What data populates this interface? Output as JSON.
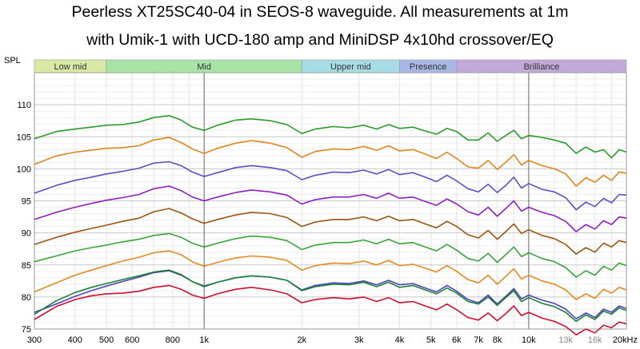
{
  "title_lines": [
    "Peerless XT25SC40-04 in SEOS-8 waveguide. All measurements at 1m",
    "with Umik-1 with UCD-180 amp and MiniDSP 4x10hd crossover/EQ"
  ],
  "chart_data": {
    "type": "line",
    "ylabel": "SPL",
    "xscale": "log",
    "xlim": [
      300,
      20000
    ],
    "ylim": [
      75,
      115
    ],
    "grid": true,
    "x_ticks": [
      {
        "value": 300,
        "label": "300",
        "minor": false
      },
      {
        "value": 400,
        "label": "400",
        "minor": false
      },
      {
        "value": 500,
        "label": "500",
        "minor": false
      },
      {
        "value": 600,
        "label": "600",
        "minor": false
      },
      {
        "value": 800,
        "label": "800",
        "minor": false
      },
      {
        "value": 1000,
        "label": "1k",
        "minor": false
      },
      {
        "value": 2000,
        "label": "2k",
        "minor": false
      },
      {
        "value": 3000,
        "label": "3k",
        "minor": false
      },
      {
        "value": 4000,
        "label": "4k",
        "minor": false
      },
      {
        "value": 5000,
        "label": "5k",
        "minor": false
      },
      {
        "value": 6000,
        "label": "6k",
        "minor": false
      },
      {
        "value": 7000,
        "label": "7k",
        "minor": false
      },
      {
        "value": 8000,
        "label": "8k",
        "minor": false
      },
      {
        "value": 10000,
        "label": "10k",
        "minor": false
      },
      {
        "value": 13000,
        "label": "13k",
        "minor": true
      },
      {
        "value": 16000,
        "label": "16k",
        "minor": true
      },
      {
        "value": 20000,
        "label": "20kHz",
        "minor": false
      }
    ],
    "y_ticks": [
      75,
      80,
      85,
      90,
      95,
      100,
      105,
      110
    ],
    "bands": [
      {
        "label": "Low mid",
        "from": 300,
        "to": 500,
        "color": "#d8e9a4"
      },
      {
        "label": "Mid",
        "from": 500,
        "to": 2000,
        "color": "#a9e4a7"
      },
      {
        "label": "Upper mid",
        "from": 2000,
        "to": 4000,
        "color": "#a6dde4"
      },
      {
        "label": "Presence",
        "from": 4000,
        "to": 6000,
        "color": "#a9b7e6"
      },
      {
        "label": "Brilliance",
        "from": 6000,
        "to": 20000,
        "color": "#c2a9d9"
      }
    ],
    "x": [
      300,
      350,
      400,
      450,
      500,
      560,
      630,
      700,
      780,
      850,
      920,
      1000,
      1100,
      1250,
      1400,
      1600,
      1800,
      2000,
      2200,
      2500,
      2800,
      3100,
      3400,
      3700,
      4000,
      4400,
      4800,
      5200,
      5600,
      6000,
      6500,
      7000,
      7500,
      8000,
      8500,
      9000,
      9500,
      10000,
      11000,
      12000,
      13000,
      14000,
      15000,
      16000,
      17000,
      18000,
      19000,
      20000
    ],
    "series": [
      {
        "color": "#2c9a2c",
        "values": [
          104.7,
          105.8,
          106.2,
          106.5,
          106.8,
          106.9,
          107.3,
          108.0,
          108.3,
          107.6,
          106.5,
          106.0,
          106.8,
          107.6,
          107.8,
          107.5,
          106.9,
          105.5,
          106.2,
          106.6,
          106.4,
          106.8,
          106.2,
          106.9,
          106.3,
          106.5,
          105.9,
          105.4,
          106.3,
          105.8,
          104.5,
          104.5,
          105.6,
          104.3,
          105.2,
          106.0,
          104.7,
          105.2,
          104.9,
          104.5,
          104.0,
          102.4,
          103.4,
          102.6,
          103.0,
          101.7,
          103.0,
          102.6
        ]
      },
      {
        "color": "#e0841c",
        "values": [
          100.7,
          102.0,
          102.6,
          102.9,
          103.2,
          103.3,
          103.6,
          104.5,
          104.9,
          104.1,
          103.1,
          102.4,
          103.2,
          104.0,
          104.4,
          104.0,
          103.3,
          101.8,
          102.7,
          103.1,
          103.0,
          103.5,
          102.9,
          103.6,
          102.8,
          103.0,
          102.3,
          101.6,
          102.6,
          101.6,
          100.3,
          100.1,
          101.3,
          99.9,
          101.0,
          102.2,
          100.6,
          101.3,
          100.5,
          100.0,
          99.2,
          97.3,
          98.6,
          97.9,
          99.0,
          98.2,
          99.5,
          99.3
        ]
      },
      {
        "color": "#5b50c2",
        "values": [
          96.2,
          97.4,
          98.2,
          98.7,
          99.2,
          99.6,
          100.1,
          100.9,
          101.1,
          100.5,
          99.5,
          98.8,
          99.4,
          100.2,
          100.5,
          100.2,
          99.7,
          98.3,
          99.0,
          99.5,
          99.4,
          99.8,
          99.2,
          99.9,
          99.1,
          99.4,
          98.7,
          98.0,
          99.0,
          98.1,
          96.9,
          96.4,
          97.6,
          96.3,
          97.4,
          98.7,
          97.0,
          97.7,
          96.8,
          96.4,
          95.5,
          93.6,
          94.8,
          94.1,
          95.4,
          94.7,
          96.0,
          95.9
        ]
      },
      {
        "color": "#8d1fc0",
        "values": [
          92.1,
          93.2,
          94.0,
          94.6,
          95.1,
          95.5,
          96.0,
          96.9,
          97.3,
          96.6,
          95.6,
          95.0,
          95.6,
          96.3,
          96.7,
          96.4,
          95.9,
          94.5,
          95.2,
          95.6,
          95.6,
          96.0,
          95.4,
          96.2,
          95.4,
          95.6,
          94.9,
          94.3,
          95.3,
          94.5,
          93.3,
          92.8,
          94.0,
          92.6,
          93.8,
          95.0,
          93.4,
          94.0,
          93.2,
          92.7,
          91.8,
          90.2,
          91.3,
          90.6,
          91.9,
          91.3,
          92.5,
          92.3
        ]
      },
      {
        "color": "#9a5510",
        "values": [
          88.2,
          89.3,
          90.1,
          90.7,
          91.2,
          91.8,
          92.3,
          93.3,
          93.8,
          93.1,
          92.2,
          91.5,
          92.1,
          92.8,
          93.2,
          93.0,
          92.4,
          91.0,
          91.7,
          92.1,
          92.1,
          92.5,
          91.9,
          92.6,
          91.9,
          92.1,
          91.4,
          90.8,
          91.8,
          91.0,
          89.7,
          89.2,
          90.4,
          89.0,
          90.2,
          91.4,
          89.9,
          90.5,
          89.6,
          89.1,
          88.2,
          86.7,
          87.7,
          87.0,
          88.4,
          87.8,
          88.8,
          88.5
        ]
      },
      {
        "color": "#3aa43a",
        "values": [
          85.5,
          86.4,
          87.2,
          87.7,
          88.1,
          88.6,
          89.0,
          89.6,
          89.9,
          89.3,
          88.4,
          87.8,
          88.4,
          89.1,
          89.5,
          89.3,
          88.8,
          87.4,
          88.1,
          88.5,
          88.5,
          88.9,
          88.3,
          89.0,
          88.3,
          88.5,
          87.8,
          87.2,
          88.2,
          87.3,
          86.0,
          85.6,
          86.8,
          85.4,
          86.6,
          87.8,
          86.3,
          86.9,
          86.0,
          85.5,
          84.6,
          83.1,
          84.1,
          83.4,
          84.8,
          84.2,
          85.3,
          84.9
        ]
      },
      {
        "color": "#e08a22",
        "values": [
          80.8,
          82.2,
          83.4,
          84.2,
          84.9,
          85.6,
          86.2,
          86.9,
          87.2,
          86.6,
          85.5,
          84.8,
          85.4,
          86.1,
          86.4,
          86.2,
          85.7,
          84.2,
          84.9,
          85.3,
          85.2,
          85.6,
          85.0,
          85.7,
          84.9,
          85.1,
          84.5,
          83.9,
          84.9,
          84.0,
          82.7,
          82.2,
          83.4,
          82.0,
          83.2,
          84.4,
          82.8,
          83.4,
          82.5,
          82.0,
          81.1,
          79.6,
          80.5,
          79.8,
          81.2,
          80.6,
          81.5,
          81.1
        ]
      },
      {
        "color": "#4b45b5",
        "values": [
          77.6,
          78.9,
          80.1,
          81.0,
          81.7,
          82.4,
          83.1,
          83.8,
          84.1,
          83.4,
          82.4,
          81.7,
          82.3,
          83.0,
          83.3,
          83.1,
          82.6,
          81.1,
          81.8,
          82.2,
          82.1,
          82.5,
          81.9,
          82.6,
          81.9,
          82.1,
          81.4,
          80.8,
          81.8,
          80.9,
          79.6,
          79.1,
          80.3,
          78.9,
          80.1,
          81.3,
          79.7,
          80.3,
          79.5,
          79.0,
          78.1,
          76.6,
          77.5,
          76.8,
          78.1,
          77.6,
          78.6,
          78.2
        ]
      },
      {
        "color": "#1f7f3a",
        "values": [
          77.3,
          79.4,
          80.7,
          81.5,
          82.1,
          82.7,
          83.3,
          83.9,
          84.2,
          83.5,
          82.4,
          81.6,
          82.3,
          83.0,
          83.3,
          83.1,
          82.6,
          81.0,
          81.6,
          82.0,
          81.9,
          82.3,
          81.6,
          82.3,
          81.5,
          81.8,
          81.1,
          80.5,
          81.4,
          80.6,
          79.3,
          78.9,
          80.0,
          78.7,
          79.9,
          81.0,
          79.3,
          79.9,
          79.0,
          78.5,
          77.6,
          76.2,
          77.2,
          76.5,
          77.8,
          77.3,
          78.3,
          77.9
        ]
      },
      {
        "color": "#c8102e",
        "values": [
          76.5,
          78.5,
          79.6,
          80.2,
          80.5,
          80.6,
          80.9,
          81.5,
          81.8,
          81.2,
          80.3,
          79.8,
          80.5,
          81.2,
          81.5,
          81.1,
          80.5,
          79.1,
          79.6,
          79.9,
          79.7,
          80.0,
          79.3,
          79.9,
          79.1,
          79.3,
          78.6,
          78.0,
          78.9,
          78.0,
          76.8,
          76.4,
          77.5,
          76.3,
          77.4,
          78.6,
          77.1,
          77.6,
          76.7,
          76.2,
          75.4,
          74.1,
          75.0,
          74.4,
          75.6,
          75.2,
          76.1,
          75.8
        ]
      }
    ]
  }
}
